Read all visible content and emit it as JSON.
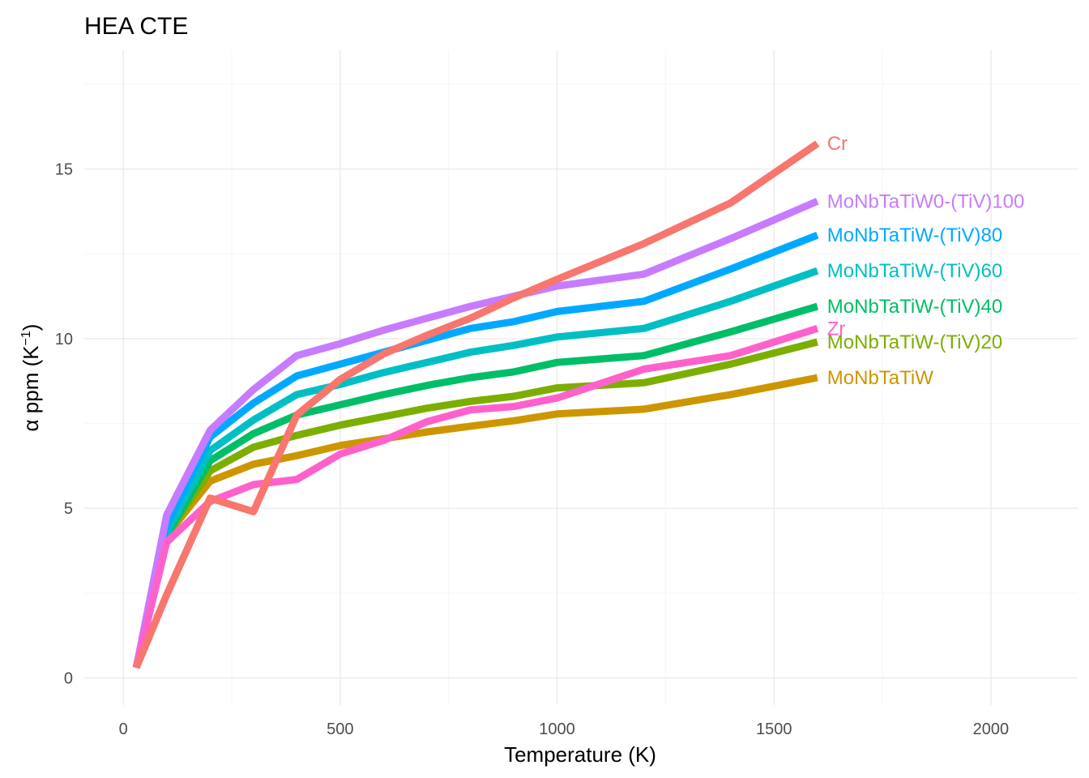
{
  "chart_data": {
    "type": "line",
    "title": "HEA CTE",
    "xlabel": "Temperature (K)",
    "ylabel": {
      "prefix": "α ppm (K",
      "superscript": "−1",
      "suffix": ")"
    },
    "xlim": [
      -90,
      2200
    ],
    "ylim": [
      -0.8,
      18.5
    ],
    "x_ticks": [
      0,
      500,
      1000,
      1500,
      2000
    ],
    "y_ticks": [
      0,
      5,
      10,
      15
    ],
    "x_minor": [
      250,
      750,
      1250,
      1750
    ],
    "y_minor": [
      2.5,
      7.5,
      12.5,
      17.5
    ],
    "grid": true,
    "legend": "direct labels at line ends",
    "series": [
      {
        "name": "MoNbTaTiW",
        "color": "#cd9600",
        "points": [
          [
            30,
            0.3
          ],
          [
            100,
            4.2
          ],
          [
            200,
            5.8
          ],
          [
            300,
            6.3
          ],
          [
            400,
            6.55
          ],
          [
            500,
            6.85
          ],
          [
            600,
            7.05
          ],
          [
            700,
            7.25
          ],
          [
            800,
            7.42
          ],
          [
            900,
            7.58
          ],
          [
            1000,
            7.78
          ],
          [
            1200,
            7.92
          ],
          [
            1400,
            8.35
          ],
          [
            1600,
            8.85
          ]
        ]
      },
      {
        "name": "MoNbTaTiW-(TiV)20",
        "color": "#7cae00",
        "points": [
          [
            30,
            0.3
          ],
          [
            100,
            4.2
          ],
          [
            200,
            6.1
          ],
          [
            300,
            6.8
          ],
          [
            400,
            7.15
          ],
          [
            500,
            7.45
          ],
          [
            600,
            7.7
          ],
          [
            700,
            7.95
          ],
          [
            800,
            8.15
          ],
          [
            900,
            8.3
          ],
          [
            1000,
            8.55
          ],
          [
            1200,
            8.7
          ],
          [
            1400,
            9.25
          ],
          [
            1600,
            9.9
          ]
        ]
      },
      {
        "name": "MoNbTaTiW-(TiV)40",
        "color": "#00be67",
        "points": [
          [
            30,
            0.3
          ],
          [
            100,
            4.2
          ],
          [
            200,
            6.4
          ],
          [
            300,
            7.2
          ],
          [
            400,
            7.75
          ],
          [
            500,
            8.05
          ],
          [
            600,
            8.35
          ],
          [
            700,
            8.62
          ],
          [
            800,
            8.85
          ],
          [
            900,
            9.02
          ],
          [
            1000,
            9.3
          ],
          [
            1200,
            9.5
          ],
          [
            1400,
            10.2
          ],
          [
            1600,
            10.95
          ]
        ]
      },
      {
        "name": "MoNbTaTiW-(TiV)60",
        "color": "#00bfc4",
        "points": [
          [
            30,
            0.3
          ],
          [
            100,
            4.3
          ],
          [
            200,
            6.7
          ],
          [
            300,
            7.6
          ],
          [
            400,
            8.35
          ],
          [
            500,
            8.65
          ],
          [
            600,
            9.0
          ],
          [
            700,
            9.3
          ],
          [
            800,
            9.6
          ],
          [
            900,
            9.8
          ],
          [
            1000,
            10.05
          ],
          [
            1200,
            10.3
          ],
          [
            1400,
            11.1
          ],
          [
            1600,
            12.0
          ]
        ]
      },
      {
        "name": "MoNbTaTiW-(TiV)80",
        "color": "#00a9ff",
        "points": [
          [
            30,
            0.3
          ],
          [
            100,
            4.5
          ],
          [
            200,
            7.1
          ],
          [
            300,
            8.1
          ],
          [
            400,
            8.9
          ],
          [
            500,
            9.25
          ],
          [
            600,
            9.6
          ],
          [
            700,
            9.95
          ],
          [
            800,
            10.3
          ],
          [
            900,
            10.5
          ],
          [
            1000,
            10.8
          ],
          [
            1200,
            11.1
          ],
          [
            1400,
            12.05
          ],
          [
            1600,
            13.05
          ]
        ]
      },
      {
        "name": "MoNbTaTiW0-(TiV)100",
        "color": "#c77cff",
        "points": [
          [
            30,
            0.3
          ],
          [
            100,
            4.8
          ],
          [
            200,
            7.3
          ],
          [
            300,
            8.5
          ],
          [
            400,
            9.5
          ],
          [
            500,
            9.85
          ],
          [
            600,
            10.25
          ],
          [
            700,
            10.6
          ],
          [
            800,
            10.95
          ],
          [
            900,
            11.25
          ],
          [
            1000,
            11.55
          ],
          [
            1200,
            11.9
          ],
          [
            1400,
            12.95
          ],
          [
            1600,
            14.05
          ]
        ]
      },
      {
        "name": "Zr",
        "color": "#ff61cc",
        "points": [
          [
            30,
            0.3
          ],
          [
            100,
            4.0
          ],
          [
            200,
            5.2
          ],
          [
            300,
            5.7
          ],
          [
            400,
            5.85
          ],
          [
            500,
            6.6
          ],
          [
            600,
            7.0
          ],
          [
            700,
            7.55
          ],
          [
            800,
            7.9
          ],
          [
            900,
            8.0
          ],
          [
            1000,
            8.25
          ],
          [
            1200,
            9.1
          ],
          [
            1400,
            9.5
          ],
          [
            1600,
            10.3
          ]
        ]
      },
      {
        "name": "Cr",
        "color": "#f8766d",
        "points": [
          [
            30,
            0.3
          ],
          [
            100,
            2.45
          ],
          [
            200,
            5.3
          ],
          [
            300,
            4.9
          ],
          [
            400,
            7.75
          ],
          [
            500,
            8.8
          ],
          [
            600,
            9.55
          ],
          [
            700,
            10.1
          ],
          [
            800,
            10.6
          ],
          [
            900,
            11.2
          ],
          [
            1000,
            11.75
          ],
          [
            1200,
            12.8
          ],
          [
            1400,
            14.0
          ],
          [
            1600,
            15.75
          ]
        ]
      }
    ]
  }
}
